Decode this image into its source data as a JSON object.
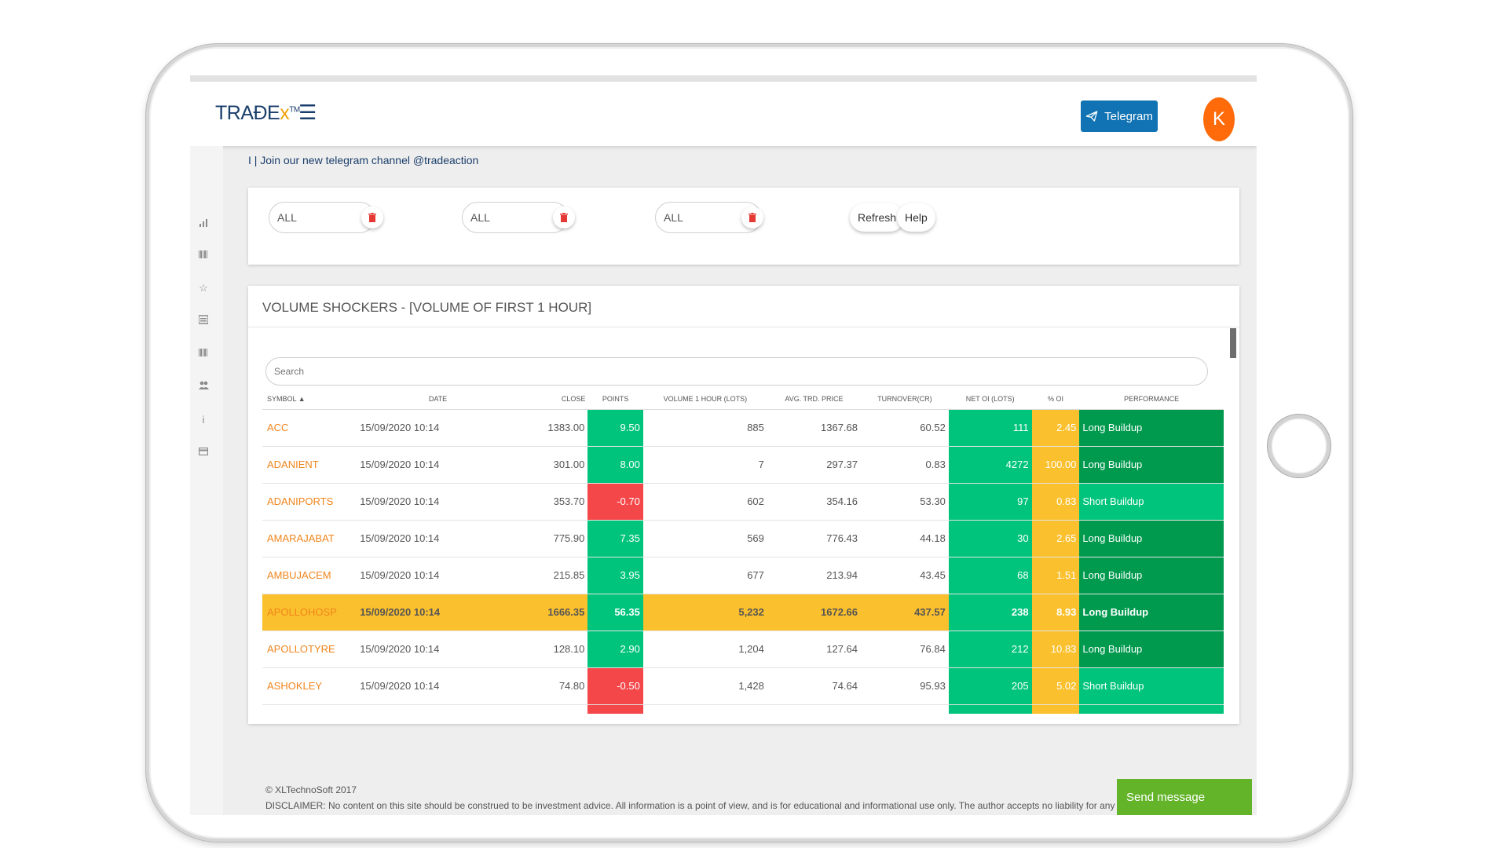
{
  "header": {
    "logo": {
      "main": "TRAĐE",
      "x": "x",
      "tm": "TM"
    },
    "telegram_label": "Telegram",
    "avatar_letter": "K"
  },
  "colors": {
    "brand_blue": "#1173b3",
    "avatar_orange": "#ff6b0a",
    "positive": "#00c47c",
    "negative": "#f4474a",
    "highlight": "#fbc02d",
    "long_buildup": "#009a4f",
    "send_message": "#64b42a"
  },
  "rail_icons": [
    "signal-bars-icon",
    "barcode-icon",
    "star-icon",
    "news-icon",
    "barcode-icon",
    "users-icon",
    "info-icon",
    "credit-card-icon"
  ],
  "announcement": "I | Join our new telegram channel @tradeaction",
  "filters": [
    {
      "value": "ALL"
    },
    {
      "value": "ALL"
    },
    {
      "value": "ALL"
    }
  ],
  "buttons": {
    "refresh": "Refresh",
    "help": "Help"
  },
  "table": {
    "title": "VOLUME SHOCKERS - [VOLUME OF FIRST 1 HOUR]",
    "search_placeholder": "Search",
    "columns": [
      "SYMBOL",
      "DATE",
      "CLOSE",
      "POINTS",
      "VOLUME 1 HOUR (LOTS)",
      "AVG. TRD. PRICE",
      "TURNOVER(CR)",
      "NET OI (LOTS)",
      "% OI",
      "PERFORMANCE"
    ],
    "sort_indicator": "▲",
    "rows": [
      {
        "symbol": "ACC",
        "date": "15/09/2020 10:14",
        "close": "1383.00",
        "points": "9.50",
        "volume": "885",
        "avg": "1367.68",
        "turnover": "60.52",
        "net_oi": "111",
        "pct_oi": "2.45",
        "performance": "Long Buildup"
      },
      {
        "symbol": "ADANIENT",
        "date": "15/09/2020 10:14",
        "close": "301.00",
        "points": "8.00",
        "volume": "7",
        "avg": "297.37",
        "turnover": "0.83",
        "net_oi": "4272",
        "pct_oi": "100.00",
        "performance": "Long Buildup"
      },
      {
        "symbol": "ADANIPORTS",
        "date": "15/09/2020 10:14",
        "close": "353.70",
        "points": "-0.70",
        "volume": "602",
        "avg": "354.16",
        "turnover": "53.30",
        "net_oi": "97",
        "pct_oi": "0.83",
        "performance": "Short Buildup"
      },
      {
        "symbol": "AMARAJABAT",
        "date": "15/09/2020 10:14",
        "close": "775.90",
        "points": "7.35",
        "volume": "569",
        "avg": "776.43",
        "turnover": "44.18",
        "net_oi": "30",
        "pct_oi": "2.65",
        "performance": "Long Buildup"
      },
      {
        "symbol": "AMBUJACEM",
        "date": "15/09/2020 10:14",
        "close": "215.85",
        "points": "3.95",
        "volume": "677",
        "avg": "213.94",
        "turnover": "43.45",
        "net_oi": "68",
        "pct_oi": "1.51",
        "performance": "Long Buildup"
      },
      {
        "symbol": "APOLLOHOSP",
        "date": "15/09/2020 10:14",
        "close": "1666.35",
        "points": "56.35",
        "volume": "5,232",
        "avg": "1672.66",
        "turnover": "437.57",
        "net_oi": "238",
        "pct_oi": "8.93",
        "performance": "Long Buildup"
      },
      {
        "symbol": "APOLLOTYRE",
        "date": "15/09/2020 10:14",
        "close": "128.10",
        "points": "2.90",
        "volume": "1,204",
        "avg": "127.64",
        "turnover": "76.84",
        "net_oi": "212",
        "pct_oi": "10.83",
        "performance": "Long Buildup"
      },
      {
        "symbol": "ASHOKLEY",
        "date": "15/09/2020 10:14",
        "close": "74.80",
        "points": "-0.50",
        "volume": "1,428",
        "avg": "74.64",
        "turnover": "95.93",
        "net_oi": "205",
        "pct_oi": "5.02",
        "performance": "Short Buildup"
      }
    ]
  },
  "footer": {
    "copyright": "© XLTechnoSoft 2017",
    "disclaimer": "DISCLAIMER: No content on this site should be construed to be investment advice. All information is a point of view, and is for educational and informational use only. The author accepts no liability for any interpretation of"
  },
  "send_message": "Send message"
}
